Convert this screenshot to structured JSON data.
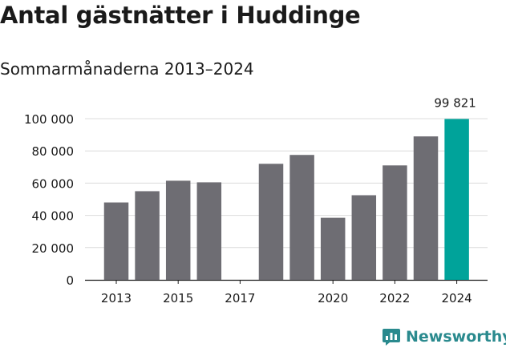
{
  "title": "Antal gästnätter i Huddinge",
  "subtitle": "Sommarmånaderna 2013–2024",
  "logo_text": "Newsworthy",
  "colors": {
    "bar": "#6e6d73",
    "highlight": "#00a39a",
    "grid": "#dcdcdc",
    "axis": "#1a1a1a",
    "brand": "#2a8a8e"
  },
  "chart_data": {
    "type": "bar",
    "categories": [
      "2013",
      "2014",
      "2015",
      "2016",
      "2017",
      "2018",
      "2019",
      "2020",
      "2021",
      "2022",
      "2023",
      "2024"
    ],
    "values": [
      48000,
      55000,
      61500,
      60500,
      null,
      72000,
      77500,
      38500,
      52500,
      71000,
      89000,
      99821
    ],
    "x_tick_labels": [
      "2013",
      "2015",
      "2017",
      "2020",
      "2022",
      "2024"
    ],
    "y_ticks": [
      0,
      20000,
      40000,
      60000,
      80000,
      100000
    ],
    "y_tick_labels": [
      "0",
      "20 000",
      "40 000",
      "60 000",
      "80 000",
      "100 000"
    ],
    "ylim": [
      0,
      100000
    ],
    "highlight_category": "2024",
    "data_label": "99 821",
    "grid": true
  }
}
